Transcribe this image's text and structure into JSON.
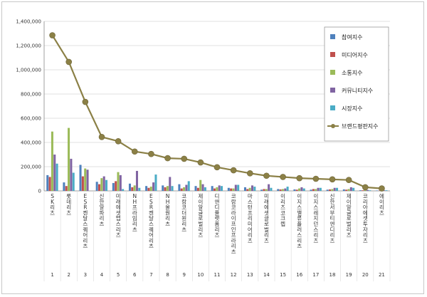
{
  "chart_data": {
    "type": "bar",
    "title": "",
    "xlabel": "",
    "ylabel": "",
    "ylim": [
      0,
      1400000
    ],
    "yticks": [
      "0",
      "200,000",
      "400,000",
      "600,000",
      "800,000",
      "1,000,000",
      "1,200,000",
      "1,400,000"
    ],
    "grid": true,
    "legend_position": "right",
    "ranks": [
      "1",
      "2",
      "3",
      "4",
      "5",
      "6",
      "7",
      "8",
      "9",
      "10",
      "11",
      "12",
      "13",
      "14",
      "15",
      "16",
      "17",
      "18",
      "19",
      "20",
      "21"
    ],
    "categories": [
      "SK리츠",
      "롯데리츠",
      "ESR켄달스퀘어리츠",
      "신한알파리츠",
      "미래에셋맵스리츠",
      "NH프라임리츠",
      "ESR켄달스퀘어리츠",
      "NH올원리츠",
      "코람코더원리츠",
      "제이알글로벌리츠",
      "디앤디플랫폼리츠",
      "코람코라이프인프라리츠",
      "마스턴프리미어리츠",
      "미래에셋글로벌리츠",
      "이리츠코크렙",
      "이지스밸류플러스리츠",
      "이지스레지던스리츠",
      "신한서부티엔디리츠",
      "제이알글로벌리츠",
      "코리아에셋투자리츠",
      "에이리츠"
    ],
    "category_labels_shown": [
      "SK리츠",
      "롯데리츠",
      "ESR켄달스퀘어리츠",
      "신한알파리츠",
      "미래에셋맵스리츠",
      "NH프라임리츠",
      "ESR켄달스퀘어리츠",
      "NH올원리츠",
      "코람코더원리츠",
      "제이알글로벌리츠",
      "디앤디플랫폼리츠",
      "코람코라이프인프라리츠",
      "마스턴프리미어리츠",
      "미래에셋글로벌리츠",
      "이리츠코크렙",
      "이지스밸류플러스리츠",
      "이지스레지던스리츠",
      "신한서부티엔디리츠",
      "제이알글로벌리츠",
      "코리아에셋투자리츠",
      "에이리츠"
    ],
    "series": [
      {
        "name": "참여지수",
        "color": "#4f81bd",
        "kind": "bar",
        "values": [
          130000,
          70000,
          215000,
          75000,
          65000,
          60000,
          40000,
          45000,
          55000,
          40000,
          40000,
          25000,
          30000,
          10000,
          15000,
          12000,
          10000,
          10000,
          12000,
          5000,
          3000
        ]
      },
      {
        "name": "미디어지수",
        "color": "#c0504d",
        "kind": "bar",
        "values": [
          115000,
          40000,
          120000,
          55000,
          80000,
          30000,
          25000,
          30000,
          20000,
          25000,
          20000,
          20000,
          15000,
          15000,
          12000,
          10000,
          15000,
          12000,
          10000,
          5000,
          2000
        ]
      },
      {
        "name": "소통지수",
        "color": "#9bbb59",
        "kind": "bar",
        "values": [
          490000,
          520000,
          185000,
          105000,
          155000,
          45000,
          35000,
          40000,
          30000,
          90000,
          30000,
          20000,
          25000,
          15000,
          15000,
          20000,
          15000,
          15000,
          15000,
          8000,
          2000
        ]
      },
      {
        "name": "커뮤니티지수",
        "color": "#8064a2",
        "kind": "bar",
        "values": [
          300000,
          265000,
          175000,
          120000,
          130000,
          165000,
          70000,
          115000,
          50000,
          55000,
          45000,
          50000,
          45000,
          55000,
          20000,
          30000,
          25000,
          25000,
          30000,
          8000,
          5000
        ]
      },
      {
        "name": "시장지수",
        "color": "#4bacc6",
        "kind": "bar",
        "values": [
          225000,
          150000,
          0,
          90000,
          15000,
          25000,
          135000,
          40000,
          80000,
          30000,
          40000,
          50000,
          35000,
          25000,
          35000,
          20000,
          25000,
          25000,
          25000,
          5000,
          5000
        ]
      },
      {
        "name": "브랜드평판지수",
        "color": "#8b8046",
        "kind": "line",
        "values": [
          1285000,
          1065000,
          735000,
          445000,
          410000,
          325000,
          305000,
          270000,
          265000,
          235000,
          195000,
          170000,
          145000,
          125000,
          115000,
          105000,
          100000,
          95000,
          90000,
          30000,
          20000
        ]
      }
    ]
  }
}
